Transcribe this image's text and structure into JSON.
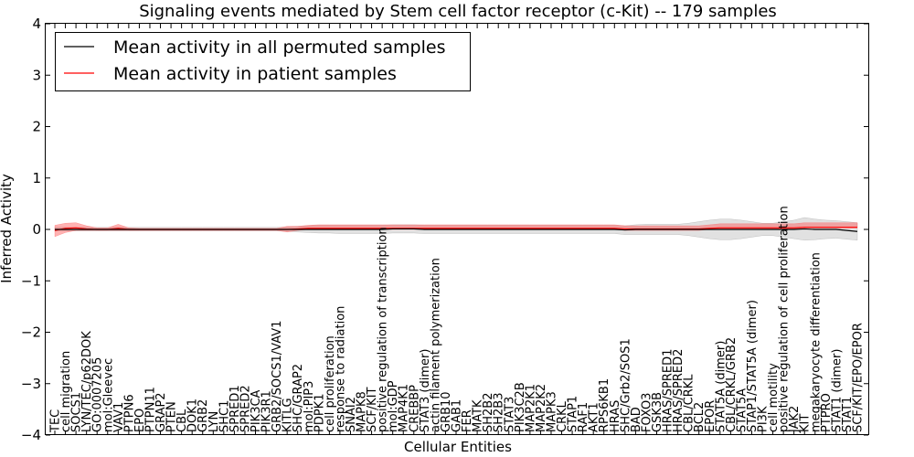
{
  "chart_data": {
    "type": "line",
    "title": "Signaling events mediated by Stem cell factor receptor (c-Kit) -- 179 samples",
    "xlabel": "Cellular Entities",
    "ylabel": "Inferred Activity",
    "ylim": [
      -4,
      4
    ],
    "yticks": [
      -4,
      -3,
      -2,
      -1,
      0,
      1,
      2,
      3,
      4
    ],
    "ytick_labels": [
      "−4",
      "−3",
      "−2",
      "−1",
      "0",
      "1",
      "2",
      "3",
      "4"
    ],
    "grid": false,
    "legend_position": "top-left",
    "categories": [
      "TEC",
      "cell migration",
      "SOCS1",
      "LYN/TEC/p62DOK",
      "GO:0007205",
      "mol:Gleevec",
      "VAV1",
      "PTPN6",
      "EPO",
      "PTPN11",
      "GRAP2",
      "PTEN",
      "CBL",
      "DOK1",
      "GRB2",
      "LYN",
      "SHC1",
      "SPRED1",
      "SPRED2",
      "PIK3CA",
      "PIK3R1",
      "GRB2/SOCS1/VAV1",
      "KITLG",
      "SHC/GRAP2",
      "mol:PIP3",
      "PDPK1",
      "cell proliferation",
      "response to radiation",
      "SNAI2",
      "MAPK8",
      "SCF/KIT",
      "positive regulation of transcription",
      "mol:GDP",
      "MAP4K1",
      "CREBBP",
      "STAT3 (dimer)",
      "actin filament polymerization",
      "GRB10",
      "GAB1",
      "FER",
      "MATK",
      "SH2B2",
      "SH2B3",
      "STAT3",
      "PIK3C2B",
      "MAP2K1",
      "MAP2K2",
      "MAPK3",
      "CRKL",
      "STAP1",
      "RAF1",
      "AKT1",
      "RPS6KB1",
      "HRAS",
      "SHC/Grb2/SOS1",
      "BAD",
      "FOXO3",
      "GSK3B",
      "HRAS/SPRED1",
      "HRAS/SPRED2",
      "CBL/CRKL",
      "BCL2",
      "EPOR",
      "STAT5A (dimer)",
      "CBL/CRKL/GRB2",
      "STAT5A",
      "STAP1/STAT5A (dimer)",
      "PI3K",
      "cell motility",
      "positive regulation of cell proliferation",
      "JAK2",
      "KIT",
      "megakaryocyte differentiation",
      "PTPRO",
      "STAT1 (dimer)",
      "STAT1",
      "SCF/KIT/EPO/EPOR"
    ],
    "series": [
      {
        "name": "Mean activity in all permuted samples",
        "color": "#000000",
        "values": [
          0,
          0,
          0,
          0,
          0,
          0,
          0,
          0,
          0,
          0,
          0,
          0,
          0,
          0,
          0,
          0,
          0,
          0,
          0,
          0,
          0,
          0,
          0,
          0,
          0,
          0,
          0,
          0,
          0,
          0,
          0,
          0,
          0.01,
          0.01,
          0.01,
          0,
          0,
          0,
          0,
          0,
          0,
          0,
          0,
          0,
          0,
          0,
          0,
          0,
          0,
          0,
          0,
          0,
          0,
          0,
          -0.01,
          0,
          0,
          0,
          0,
          0,
          0,
          0,
          0,
          0,
          0,
          0,
          0,
          0,
          0,
          0,
          0,
          0.01,
          0,
          0,
          0,
          -0.02,
          -0.04
        ],
        "band_lower": [
          -0.03,
          -0.03,
          -0.03,
          -0.03,
          -0.03,
          -0.03,
          -0.03,
          -0.03,
          -0.03,
          -0.03,
          -0.03,
          -0.03,
          -0.03,
          -0.03,
          -0.03,
          -0.03,
          -0.03,
          -0.03,
          -0.03,
          -0.03,
          -0.03,
          -0.03,
          -0.04,
          -0.05,
          -0.06,
          -0.07,
          -0.07,
          -0.08,
          -0.08,
          -0.08,
          -0.08,
          -0.08,
          -0.08,
          -0.08,
          -0.08,
          -0.08,
          -0.08,
          -0.08,
          -0.08,
          -0.08,
          -0.08,
          -0.08,
          -0.08,
          -0.08,
          -0.08,
          -0.08,
          -0.08,
          -0.08,
          -0.08,
          -0.08,
          -0.08,
          -0.08,
          -0.08,
          -0.08,
          -0.09,
          -0.1,
          -0.1,
          -0.1,
          -0.1,
          -0.1,
          -0.12,
          -0.15,
          -0.18,
          -0.2,
          -0.2,
          -0.18,
          -0.15,
          -0.12,
          -0.12,
          -0.15,
          -0.18,
          -0.22,
          -0.2,
          -0.18,
          -0.17,
          -0.17,
          -0.17
        ],
        "band_upper": [
          0.04,
          0.04,
          0.04,
          0.04,
          0.04,
          0.04,
          0.04,
          0.04,
          0.04,
          0.04,
          0.04,
          0.04,
          0.04,
          0.04,
          0.04,
          0.04,
          0.04,
          0.04,
          0.04,
          0.04,
          0.04,
          0.04,
          0.05,
          0.06,
          0.07,
          0.08,
          0.08,
          0.08,
          0.08,
          0.08,
          0.08,
          0.08,
          0.08,
          0.08,
          0.08,
          0.08,
          0.08,
          0.08,
          0.08,
          0.08,
          0.08,
          0.08,
          0.08,
          0.08,
          0.08,
          0.08,
          0.08,
          0.08,
          0.08,
          0.08,
          0.08,
          0.08,
          0.08,
          0.08,
          0.08,
          0.09,
          0.1,
          0.1,
          0.1,
          0.1,
          0.12,
          0.15,
          0.18,
          0.2,
          0.2,
          0.18,
          0.15,
          0.12,
          0.12,
          0.15,
          0.18,
          0.22,
          0.2,
          0.18,
          0.17,
          0.17,
          0.17
        ]
      },
      {
        "name": "Mean activity in patient samples",
        "color": "#ff0000",
        "values": [
          -0.02,
          0.02,
          0.03,
          0.01,
          0,
          0,
          0.02,
          0,
          0,
          0,
          0,
          0,
          0,
          0,
          0,
          0,
          0,
          0,
          0,
          0,
          0,
          0,
          0,
          0.01,
          0.02,
          0.02,
          0.02,
          0.02,
          0.02,
          0.02,
          0.02,
          0.02,
          0.02,
          0.02,
          0.02,
          0.02,
          0.02,
          0.02,
          0.02,
          0.02,
          0.02,
          0.02,
          0.02,
          0.02,
          0.02,
          0.02,
          0.02,
          0.02,
          0.02,
          0.02,
          0.02,
          0.02,
          0.02,
          0.02,
          0.01,
          0.01,
          0.01,
          0.01,
          0.01,
          0.01,
          0.01,
          0.01,
          0.02,
          0.03,
          0.03,
          0.03,
          0.03,
          0.03,
          0.03,
          0.03,
          0.03,
          0.04,
          0.04,
          0.04,
          0.04,
          0.04,
          0.04
        ],
        "band_lower": [
          -0.12,
          -0.08,
          -0.05,
          -0.03,
          -0.02,
          -0.02,
          -0.04,
          -0.02,
          -0.02,
          -0.02,
          -0.02,
          -0.02,
          -0.02,
          -0.02,
          -0.02,
          -0.02,
          -0.02,
          -0.02,
          -0.02,
          -0.02,
          -0.02,
          -0.02,
          -0.05,
          -0.03,
          -0.02,
          -0.02,
          -0.02,
          -0.02,
          -0.02,
          -0.02,
          -0.02,
          -0.02,
          -0.02,
          -0.02,
          -0.02,
          -0.02,
          -0.02,
          -0.02,
          -0.02,
          -0.02,
          -0.02,
          -0.02,
          -0.02,
          -0.02,
          -0.02,
          -0.02,
          -0.02,
          -0.02,
          -0.02,
          -0.02,
          -0.02,
          -0.02,
          -0.02,
          -0.02,
          -0.03,
          -0.03,
          -0.03,
          -0.03,
          -0.03,
          -0.03,
          -0.03,
          -0.03,
          -0.02,
          -0.02,
          -0.02,
          -0.02,
          -0.02,
          -0.02,
          -0.02,
          -0.02,
          -0.02,
          -0.01,
          -0.01,
          -0.01,
          -0.01,
          -0.01,
          -0.01
        ],
        "band_upper": [
          0.1,
          0.1,
          0.1,
          0.06,
          0.03,
          0.03,
          0.08,
          0.03,
          0.02,
          0.02,
          0.02,
          0.02,
          0.02,
          0.02,
          0.02,
          0.02,
          0.02,
          0.02,
          0.02,
          0.02,
          0.02,
          0.02,
          0.06,
          0.05,
          0.06,
          0.07,
          0.07,
          0.07,
          0.07,
          0.07,
          0.07,
          0.07,
          0.07,
          0.07,
          0.07,
          0.07,
          0.07,
          0.07,
          0.07,
          0.07,
          0.07,
          0.07,
          0.07,
          0.07,
          0.07,
          0.07,
          0.07,
          0.07,
          0.07,
          0.07,
          0.07,
          0.07,
          0.07,
          0.07,
          0.06,
          0.06,
          0.06,
          0.06,
          0.06,
          0.06,
          0.06,
          0.06,
          0.07,
          0.08,
          0.08,
          0.08,
          0.08,
          0.08,
          0.08,
          0.08,
          0.08,
          0.09,
          0.09,
          0.09,
          0.09,
          0.09,
          0.09
        ]
      }
    ]
  }
}
